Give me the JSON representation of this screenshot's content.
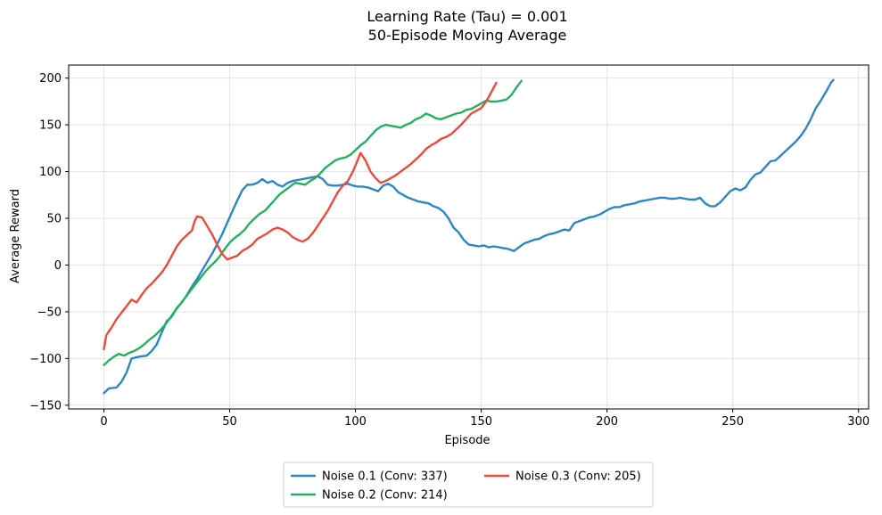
{
  "chart_data": {
    "type": "line",
    "title": "Learning Rate (Tau) = 0.001",
    "subtitle": "50-Episode Moving Average",
    "xlabel": "Episode",
    "ylabel": "Average Reward",
    "xlim": [
      -14,
      304
    ],
    "ylim": [
      -154,
      214
    ],
    "xticks": [
      0,
      50,
      100,
      150,
      200,
      250,
      300
    ],
    "yticks": [
      -150,
      -100,
      -50,
      0,
      50,
      100,
      150,
      200
    ],
    "grid": true,
    "legend_position": "bottom-center",
    "series": [
      {
        "name": "Noise 0.1 (Conv: 337)",
        "color": "#2e86c1",
        "points": [
          [
            0,
            -137
          ],
          [
            2,
            -132
          ],
          [
            5,
            -131
          ],
          [
            7,
            -125
          ],
          [
            9,
            -115
          ],
          [
            11,
            -100
          ],
          [
            14,
            -98
          ],
          [
            17,
            -97
          ],
          [
            19,
            -92
          ],
          [
            21,
            -85
          ],
          [
            23,
            -72
          ],
          [
            25,
            -60
          ],
          [
            27,
            -55
          ],
          [
            29,
            -46
          ],
          [
            31,
            -40
          ],
          [
            33,
            -32
          ],
          [
            35,
            -23
          ],
          [
            37,
            -15
          ],
          [
            39,
            -6
          ],
          [
            41,
            3
          ],
          [
            43,
            12
          ],
          [
            45,
            22
          ],
          [
            47,
            33
          ],
          [
            49,
            45
          ],
          [
            51,
            57
          ],
          [
            53,
            69
          ],
          [
            55,
            80
          ],
          [
            57,
            86
          ],
          [
            59,
            86
          ],
          [
            61,
            88
          ],
          [
            63,
            92
          ],
          [
            65,
            88
          ],
          [
            67,
            90
          ],
          [
            69,
            86
          ],
          [
            71,
            84
          ],
          [
            73,
            88
          ],
          [
            75,
            90
          ],
          [
            77,
            91
          ],
          [
            79,
            92
          ],
          [
            81,
            93
          ],
          [
            83,
            94
          ],
          [
            85,
            95
          ],
          [
            87,
            92
          ],
          [
            89,
            86
          ],
          [
            91,
            85
          ],
          [
            93,
            85
          ],
          [
            95,
            86
          ],
          [
            97,
            87
          ],
          [
            99,
            85
          ],
          [
            101,
            84
          ],
          [
            103,
            84
          ],
          [
            105,
            83
          ],
          [
            107,
            81
          ],
          [
            109,
            79
          ],
          [
            111,
            85
          ],
          [
            113,
            87
          ],
          [
            115,
            84
          ],
          [
            117,
            78
          ],
          [
            119,
            75
          ],
          [
            121,
            72
          ],
          [
            123,
            70
          ],
          [
            125,
            68
          ],
          [
            127,
            67
          ],
          [
            129,
            66
          ],
          [
            131,
            63
          ],
          [
            133,
            61
          ],
          [
            135,
            57
          ],
          [
            137,
            50
          ],
          [
            139,
            40
          ],
          [
            141,
            35
          ],
          [
            143,
            27
          ],
          [
            145,
            22
          ],
          [
            147,
            21
          ],
          [
            149,
            20
          ],
          [
            151,
            21
          ],
          [
            153,
            19
          ],
          [
            155,
            20
          ],
          [
            157,
            19
          ],
          [
            159,
            18
          ],
          [
            161,
            17
          ],
          [
            163,
            15
          ],
          [
            165,
            19
          ],
          [
            167,
            23
          ],
          [
            169,
            25
          ],
          [
            171,
            27
          ],
          [
            173,
            28
          ],
          [
            175,
            31
          ],
          [
            177,
            33
          ],
          [
            179,
            34
          ],
          [
            181,
            36
          ],
          [
            183,
            38
          ],
          [
            185,
            37
          ],
          [
            187,
            45
          ],
          [
            189,
            47
          ],
          [
            191,
            49
          ],
          [
            193,
            51
          ],
          [
            195,
            52
          ],
          [
            197,
            54
          ],
          [
            199,
            57
          ],
          [
            201,
            60
          ],
          [
            203,
            62
          ],
          [
            205,
            62
          ],
          [
            207,
            64
          ],
          [
            209,
            65
          ],
          [
            211,
            66
          ],
          [
            213,
            68
          ],
          [
            215,
            69
          ],
          [
            217,
            70
          ],
          [
            219,
            71
          ],
          [
            221,
            72
          ],
          [
            223,
            72
          ],
          [
            225,
            71
          ],
          [
            227,
            71
          ],
          [
            229,
            72
          ],
          [
            231,
            71
          ],
          [
            233,
            70
          ],
          [
            235,
            70
          ],
          [
            237,
            72
          ],
          [
            239,
            66
          ],
          [
            241,
            63
          ],
          [
            243,
            63
          ],
          [
            245,
            67
          ],
          [
            247,
            73
          ],
          [
            249,
            79
          ],
          [
            251,
            82
          ],
          [
            253,
            80
          ],
          [
            255,
            83
          ],
          [
            257,
            91
          ],
          [
            259,
            97
          ],
          [
            261,
            99
          ],
          [
            263,
            105
          ],
          [
            265,
            111
          ],
          [
            267,
            112
          ],
          [
            269,
            117
          ],
          [
            271,
            122
          ],
          [
            273,
            127
          ],
          [
            275,
            132
          ],
          [
            277,
            138
          ],
          [
            279,
            146
          ],
          [
            281,
            156
          ],
          [
            283,
            168
          ],
          [
            285,
            176
          ],
          [
            287,
            185
          ],
          [
            289,
            195
          ],
          [
            290,
            198
          ]
        ]
      },
      {
        "name": "Noise 0.2 (Conv: 214)",
        "color": "#27ae60",
        "points": [
          [
            0,
            -107
          ],
          [
            2,
            -102
          ],
          [
            4,
            -98
          ],
          [
            6,
            -95
          ],
          [
            8,
            -97
          ],
          [
            10,
            -94
          ],
          [
            12,
            -92
          ],
          [
            14,
            -89
          ],
          [
            16,
            -85
          ],
          [
            18,
            -80
          ],
          [
            20,
            -76
          ],
          [
            22,
            -71
          ],
          [
            24,
            -65
          ],
          [
            26,
            -58
          ],
          [
            28,
            -50
          ],
          [
            30,
            -43
          ],
          [
            32,
            -36
          ],
          [
            34,
            -29
          ],
          [
            36,
            -22
          ],
          [
            38,
            -15
          ],
          [
            40,
            -8
          ],
          [
            42,
            -2
          ],
          [
            44,
            3
          ],
          [
            46,
            9
          ],
          [
            48,
            17
          ],
          [
            50,
            24
          ],
          [
            52,
            29
          ],
          [
            54,
            33
          ],
          [
            56,
            38
          ],
          [
            58,
            45
          ],
          [
            60,
            50
          ],
          [
            62,
            55
          ],
          [
            64,
            58
          ],
          [
            66,
            64
          ],
          [
            68,
            70
          ],
          [
            70,
            76
          ],
          [
            72,
            80
          ],
          [
            74,
            84
          ],
          [
            76,
            88
          ],
          [
            78,
            87
          ],
          [
            80,
            86
          ],
          [
            82,
            90
          ],
          [
            84,
            93
          ],
          [
            86,
            98
          ],
          [
            88,
            104
          ],
          [
            90,
            108
          ],
          [
            92,
            112
          ],
          [
            94,
            114
          ],
          [
            96,
            115
          ],
          [
            98,
            118
          ],
          [
            100,
            123
          ],
          [
            102,
            128
          ],
          [
            104,
            132
          ],
          [
            106,
            138
          ],
          [
            108,
            144
          ],
          [
            110,
            148
          ],
          [
            112,
            150
          ],
          [
            114,
            149
          ],
          [
            116,
            148
          ],
          [
            118,
            147
          ],
          [
            120,
            150
          ],
          [
            122,
            152
          ],
          [
            124,
            156
          ],
          [
            126,
            158
          ],
          [
            128,
            162
          ],
          [
            130,
            160
          ],
          [
            132,
            157
          ],
          [
            134,
            156
          ],
          [
            136,
            158
          ],
          [
            138,
            160
          ],
          [
            140,
            162
          ],
          [
            142,
            163
          ],
          [
            144,
            166
          ],
          [
            146,
            167
          ],
          [
            148,
            170
          ],
          [
            150,
            173
          ],
          [
            152,
            176
          ],
          [
            154,
            175
          ],
          [
            156,
            175
          ],
          [
            158,
            176
          ],
          [
            160,
            177
          ],
          [
            162,
            182
          ],
          [
            164,
            190
          ],
          [
            166,
            197
          ]
        ]
      },
      {
        "name": "Noise 0.3 (Conv: 205)",
        "color": "#e74c3c",
        "points": [
          [
            0,
            -90
          ],
          [
            1,
            -75
          ],
          [
            3,
            -67
          ],
          [
            5,
            -58
          ],
          [
            7,
            -51
          ],
          [
            9,
            -44
          ],
          [
            11,
            -37
          ],
          [
            13,
            -40
          ],
          [
            15,
            -32
          ],
          [
            17,
            -25
          ],
          [
            19,
            -20
          ],
          [
            21,
            -14
          ],
          [
            23,
            -8
          ],
          [
            25,
            0
          ],
          [
            27,
            10
          ],
          [
            29,
            20
          ],
          [
            31,
            27
          ],
          [
            33,
            32
          ],
          [
            35,
            37
          ],
          [
            36,
            46
          ],
          [
            37,
            52
          ],
          [
            39,
            51
          ],
          [
            41,
            42
          ],
          [
            43,
            33
          ],
          [
            45,
            22
          ],
          [
            47,
            12
          ],
          [
            49,
            6
          ],
          [
            51,
            8
          ],
          [
            53,
            10
          ],
          [
            55,
            15
          ],
          [
            57,
            18
          ],
          [
            59,
            22
          ],
          [
            61,
            28
          ],
          [
            63,
            31
          ],
          [
            65,
            34
          ],
          [
            67,
            38
          ],
          [
            69,
            40
          ],
          [
            71,
            38
          ],
          [
            73,
            35
          ],
          [
            75,
            30
          ],
          [
            77,
            27
          ],
          [
            79,
            25
          ],
          [
            81,
            28
          ],
          [
            83,
            34
          ],
          [
            85,
            42
          ],
          [
            87,
            50
          ],
          [
            89,
            58
          ],
          [
            91,
            68
          ],
          [
            93,
            78
          ],
          [
            95,
            85
          ],
          [
            97,
            90
          ],
          [
            99,
            100
          ],
          [
            101,
            113
          ],
          [
            102,
            120
          ],
          [
            104,
            112
          ],
          [
            106,
            100
          ],
          [
            108,
            93
          ],
          [
            110,
            88
          ],
          [
            112,
            90
          ],
          [
            114,
            93
          ],
          [
            116,
            96
          ],
          [
            118,
            100
          ],
          [
            120,
            104
          ],
          [
            122,
            108
          ],
          [
            124,
            113
          ],
          [
            126,
            118
          ],
          [
            128,
            124
          ],
          [
            130,
            128
          ],
          [
            132,
            131
          ],
          [
            134,
            135
          ],
          [
            136,
            137
          ],
          [
            138,
            140
          ],
          [
            140,
            145
          ],
          [
            142,
            150
          ],
          [
            144,
            156
          ],
          [
            146,
            162
          ],
          [
            148,
            165
          ],
          [
            150,
            168
          ],
          [
            152,
            175
          ],
          [
            154,
            185
          ],
          [
            156,
            195
          ]
        ]
      }
    ]
  }
}
